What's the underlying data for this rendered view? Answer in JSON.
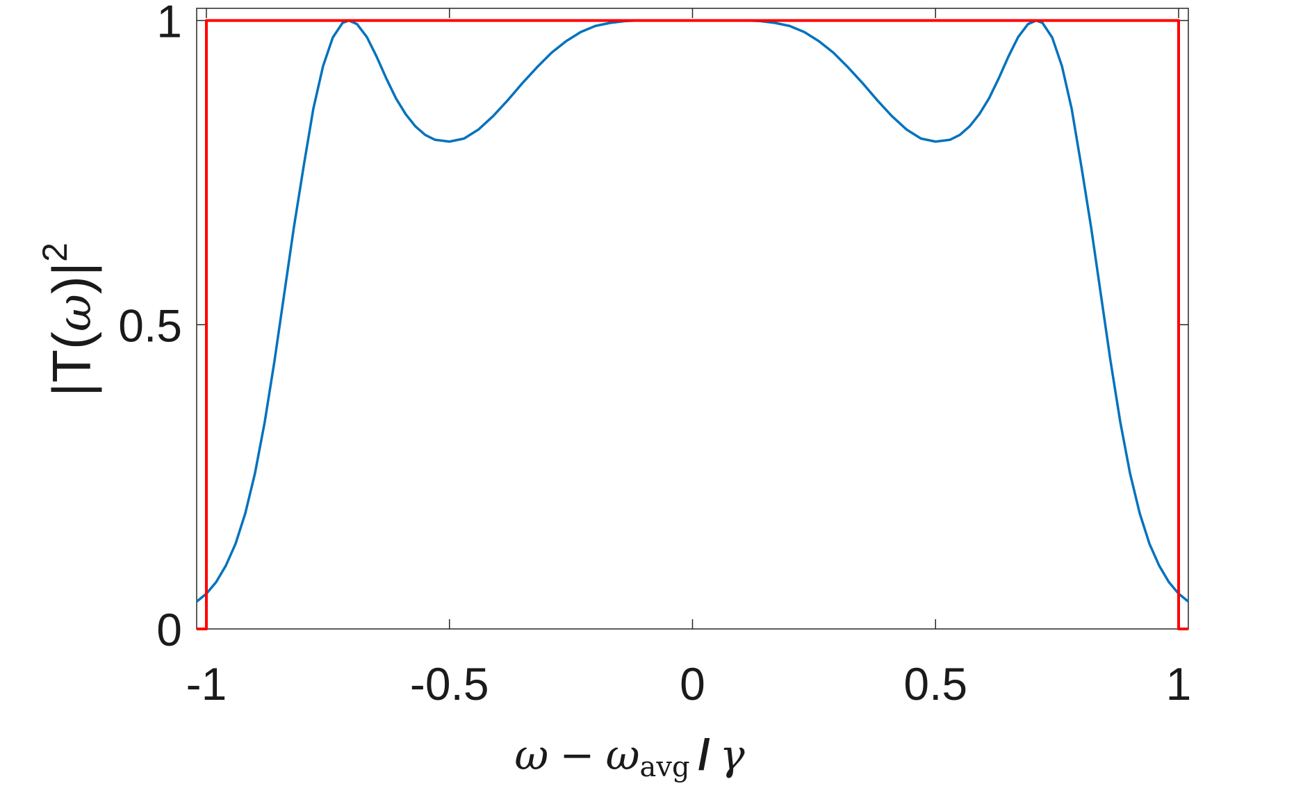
{
  "chart_data": {
    "type": "line",
    "xlabel": {
      "omega": "ω",
      "minus": "−",
      "omega2": "ω",
      "sub": "avg",
      "slash": "/",
      "gamma": "γ"
    },
    "ylabel": {
      "pre": "|T(",
      "omega": "ω",
      "post": ")|",
      "sup": "2"
    },
    "xlim": [
      -1.02,
      1.02
    ],
    "ylim": [
      0,
      1.02
    ],
    "xticks": [
      -1,
      -0.5,
      0,
      0.5,
      1
    ],
    "xtick_labels": [
      "-1",
      "-0.5",
      "0",
      "0.5",
      "1"
    ],
    "yticks": [
      0,
      0.5,
      1
    ],
    "ytick_labels": [
      "0",
      "0.5",
      "1"
    ],
    "grid": false,
    "legend": "none",
    "series": [
      {
        "color": "#0072BD",
        "x": [
          -1.02,
          -1.0,
          -0.98,
          -0.96,
          -0.94,
          -0.92,
          -0.9,
          -0.88,
          -0.86,
          -0.84,
          -0.82,
          -0.8,
          -0.78,
          -0.76,
          -0.74,
          -0.72,
          -0.707,
          -0.69,
          -0.67,
          -0.65,
          -0.63,
          -0.61,
          -0.59,
          -0.57,
          -0.55,
          -0.53,
          -0.5,
          -0.47,
          -0.44,
          -0.41,
          -0.38,
          -0.35,
          -0.32,
          -0.29,
          -0.26,
          -0.23,
          -0.2,
          -0.17,
          -0.14,
          -0.11,
          -0.08,
          -0.05,
          -0.02,
          0.0,
          0.02,
          0.05,
          0.08,
          0.11,
          0.14,
          0.17,
          0.2,
          0.23,
          0.26,
          0.29,
          0.32,
          0.35,
          0.38,
          0.41,
          0.44,
          0.47,
          0.5,
          0.53,
          0.55,
          0.57,
          0.59,
          0.61,
          0.63,
          0.65,
          0.67,
          0.69,
          0.707,
          0.72,
          0.74,
          0.76,
          0.78,
          0.8,
          0.82,
          0.84,
          0.86,
          0.88,
          0.9,
          0.92,
          0.94,
          0.96,
          0.98,
          1.0,
          1.02
        ],
        "y": [
          0.045,
          0.058,
          0.077,
          0.104,
          0.14,
          0.19,
          0.256,
          0.34,
          0.44,
          0.55,
          0.66,
          0.76,
          0.855,
          0.925,
          0.972,
          0.996,
          1.0,
          0.994,
          0.973,
          0.941,
          0.905,
          0.872,
          0.846,
          0.826,
          0.812,
          0.804,
          0.801,
          0.806,
          0.821,
          0.843,
          0.869,
          0.897,
          0.923,
          0.947,
          0.966,
          0.981,
          0.991,
          0.996,
          0.999,
          1.0,
          1.0,
          1.0,
          1.0,
          1.0,
          1.0,
          1.0,
          1.0,
          1.0,
          0.999,
          0.996,
          0.991,
          0.981,
          0.966,
          0.947,
          0.923,
          0.897,
          0.869,
          0.843,
          0.821,
          0.806,
          0.801,
          0.804,
          0.812,
          0.826,
          0.846,
          0.872,
          0.905,
          0.941,
          0.973,
          0.994,
          1.0,
          0.996,
          0.972,
          0.925,
          0.855,
          0.76,
          0.66,
          0.55,
          0.44,
          0.34,
          0.256,
          0.19,
          0.14,
          0.104,
          0.077,
          0.058,
          0.045
        ]
      },
      {
        "color": "#FF0000",
        "x": [
          -1.02,
          -1.0,
          -1.0,
          1.0,
          1.0,
          1.02
        ],
        "y": [
          0,
          0,
          1,
          1,
          0,
          0
        ]
      }
    ]
  }
}
